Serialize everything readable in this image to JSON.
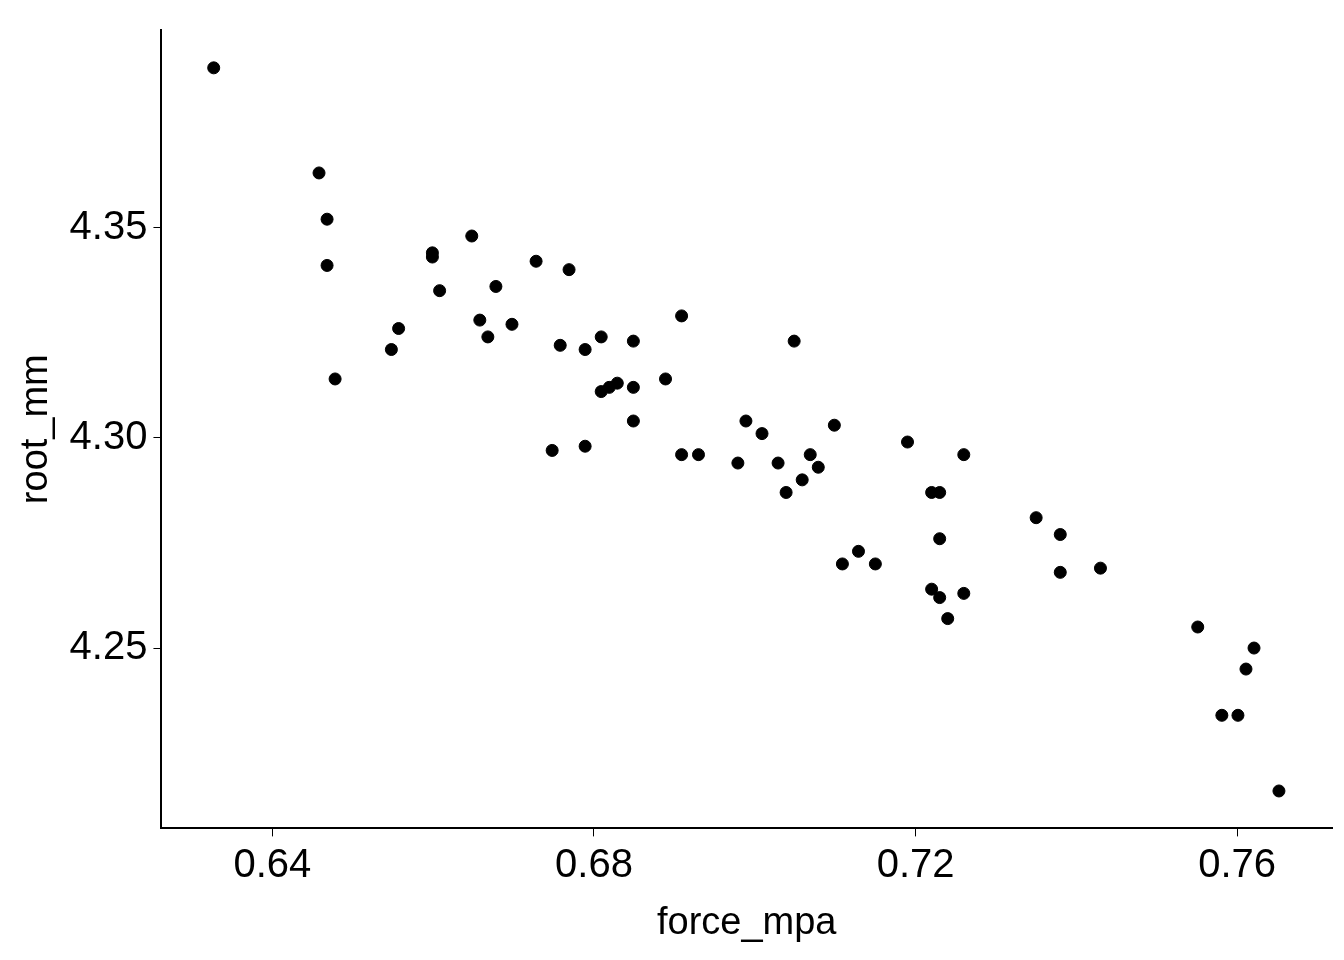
{
  "chart_data": {
    "type": "scatter",
    "xlabel": "force_mpa",
    "ylabel": "root_mm",
    "x": [
      0.6327,
      0.6458,
      0.6468,
      0.6468,
      0.6478,
      0.6548,
      0.6557,
      0.6599,
      0.6599,
      0.6608,
      0.6648,
      0.6658,
      0.6668,
      0.6678,
      0.6698,
      0.6728,
      0.6748,
      0.6758,
      0.6769,
      0.6789,
      0.6789,
      0.6809,
      0.6809,
      0.6819,
      0.6829,
      0.6849,
      0.6849,
      0.6849,
      0.6889,
      0.6909,
      0.6909,
      0.693,
      0.6979,
      0.6989,
      0.7009,
      0.7029,
      0.7039,
      0.7049,
      0.7059,
      0.7069,
      0.7079,
      0.7099,
      0.7109,
      0.7129,
      0.715,
      0.719,
      0.722,
      0.722,
      0.723,
      0.723,
      0.723,
      0.724,
      0.726,
      0.726,
      0.735,
      0.738,
      0.738,
      0.743,
      0.7551,
      0.7581,
      0.7601,
      0.7611,
      0.7621,
      0.7652
    ],
    "values": [
      4.388,
      4.363,
      4.352,
      4.341,
      4.314,
      4.321,
      4.326,
      4.344,
      4.343,
      4.335,
      4.348,
      4.328,
      4.324,
      4.336,
      4.327,
      4.342,
      4.297,
      4.322,
      4.34,
      4.321,
      4.298,
      4.324,
      4.311,
      4.312,
      4.313,
      4.323,
      4.312,
      4.304,
      4.314,
      4.329,
      4.296,
      4.296,
      4.294,
      4.304,
      4.301,
      4.294,
      4.287,
      4.323,
      4.29,
      4.296,
      4.293,
      4.303,
      4.27,
      4.273,
      4.27,
      4.299,
      4.287,
      4.264,
      4.287,
      4.276,
      4.262,
      4.257,
      4.296,
      4.263,
      4.281,
      4.277,
      4.268,
      4.269,
      4.255,
      4.234,
      4.234,
      4.245,
      4.25,
      4.216
    ],
    "color": "#000000",
    "marker": "circle",
    "grid": false,
    "legend": false,
    "xlim": [
      0.6262,
      0.7718
    ],
    "ylim": [
      4.2071,
      4.397
    ],
    "xticks": [
      {
        "value": 0.64,
        "label": "0.64"
      },
      {
        "value": 0.68,
        "label": "0.68"
      },
      {
        "value": 0.72,
        "label": "0.72"
      },
      {
        "value": 0.76,
        "label": "0.76"
      }
    ],
    "yticks": [
      {
        "value": 4.25,
        "label": "4.25"
      },
      {
        "value": 4.3,
        "label": "4.30"
      },
      {
        "value": 4.35,
        "label": "4.35"
      }
    ]
  }
}
